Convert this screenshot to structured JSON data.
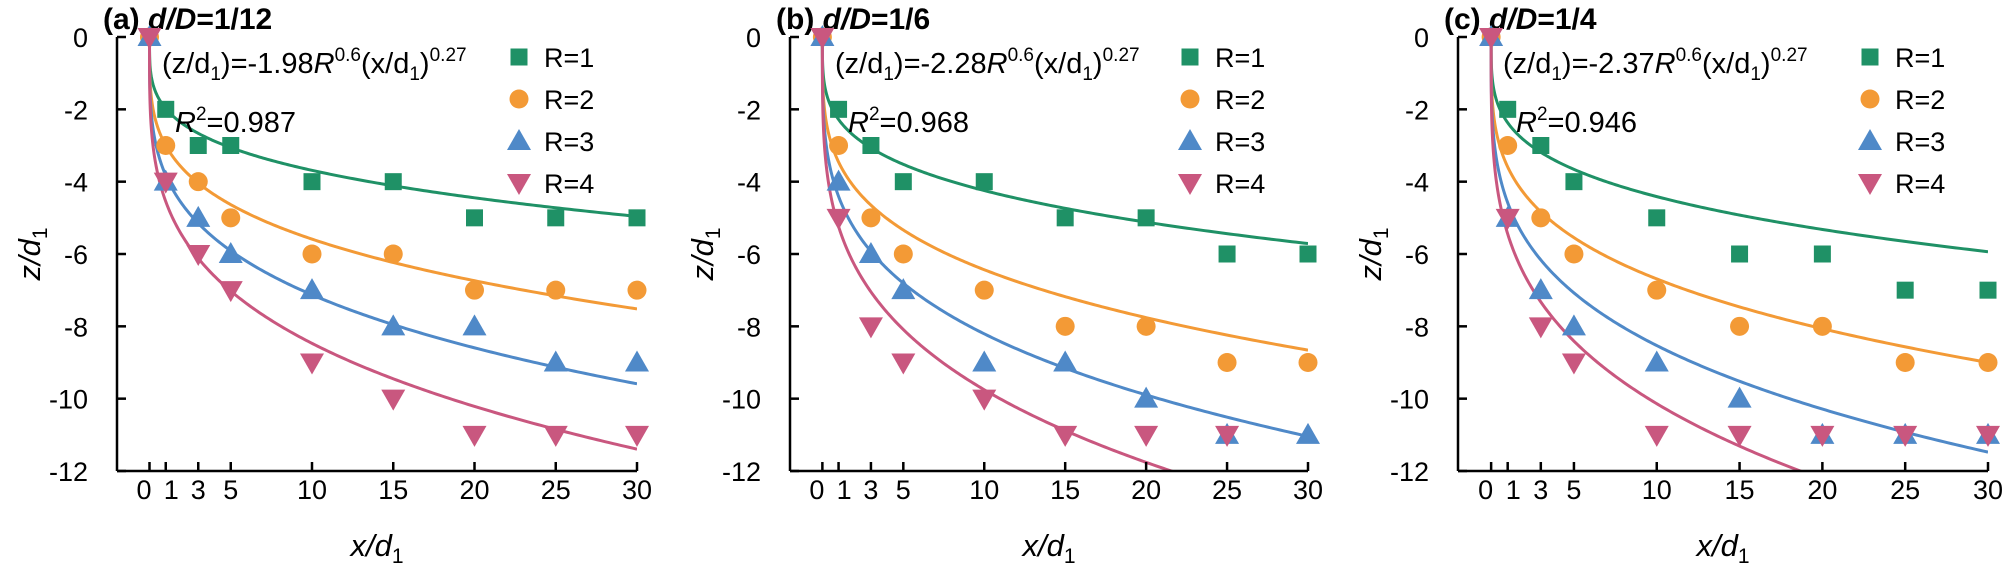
{
  "chart_data": [
    {
      "type": "scatter",
      "panel_label": "(a)",
      "title_var": "d/D",
      "title_value": "=1/12",
      "equation": "(z/d1)=-1.98R0.6(x/d1)0.27",
      "equation_parts": {
        "lhs": "(z/d",
        "lhs_sub": "1",
        "lhs_close": ")=",
        "coef": "-1.98",
        "R": "R",
        "R_exp": "0.6",
        "x": "(x/d",
        "x_sub": "1",
        "x_close": ")",
        "x_exp": "0.27"
      },
      "coef": -1.98,
      "r_exponent": 0.6,
      "x_exponent": 0.27,
      "r_squared": "R2=0.987",
      "r_squared_parts": {
        "R": "R",
        "exp": "2",
        "val": "=0.987"
      },
      "xlabel": "x/d1",
      "ylabel": "z/d1",
      "xlim": [
        -2,
        30
      ],
      "ylim": [
        -12,
        0
      ],
      "x_ticks": [
        0,
        1,
        3,
        5,
        10,
        15,
        20,
        25,
        30
      ],
      "x_tick_labels": [
        "0",
        "1",
        "3",
        "5",
        "10",
        "15",
        "20",
        "25",
        "30"
      ],
      "y_ticks": [
        0,
        -2,
        -4,
        -6,
        -8,
        -10,
        -12
      ],
      "y_tick_labels": [
        "0",
        "-2",
        "-4",
        "-6",
        "-8",
        "-10",
        "-12"
      ],
      "x": [
        0,
        1,
        3,
        5,
        10,
        15,
        20,
        25,
        30
      ],
      "series": [
        {
          "name": "R=1",
          "R": 1,
          "marker": "square",
          "color": "#1f9166",
          "values": [
            0,
            -2,
            -3,
            -3,
            -4,
            -4,
            -5,
            -5,
            -5
          ]
        },
        {
          "name": "R=2",
          "R": 2,
          "marker": "circle",
          "color": "#f39a36",
          "values": [
            0,
            -3,
            -4,
            -5,
            -6,
            -6,
            -7,
            -7,
            -7
          ]
        },
        {
          "name": "R=3",
          "R": 3,
          "marker": "triangle-up",
          "color": "#4f89c8",
          "values": [
            0,
            -4,
            -5,
            -6,
            -7,
            -8,
            -8,
            -9,
            -9
          ]
        },
        {
          "name": "R=4",
          "R": 4,
          "marker": "triangle-down",
          "color": "#c9577f",
          "values": [
            0,
            -4,
            -6,
            -7,
            -9,
            -10,
            -11,
            -11,
            -11
          ]
        }
      ]
    },
    {
      "type": "scatter",
      "panel_label": "(b)",
      "title_var": "d/D",
      "title_value": "=1/6",
      "equation": "(z/d1)=-2.28R0.6(x/d1)0.27",
      "equation_parts": {
        "lhs": "(z/d",
        "lhs_sub": "1",
        "lhs_close": ")=",
        "coef": "-2.28",
        "R": "R",
        "R_exp": "0.6",
        "x": "(x/d",
        "x_sub": "1",
        "x_close": ")",
        "x_exp": "0.27"
      },
      "coef": -2.28,
      "r_exponent": 0.6,
      "x_exponent": 0.27,
      "r_squared": "R2=0.968",
      "r_squared_parts": {
        "R": "R",
        "exp": "2",
        "val": "=0.968"
      },
      "xlabel": "x/d1",
      "ylabel": "z/d1",
      "xlim": [
        -2,
        30
      ],
      "ylim": [
        -12,
        0
      ],
      "x_ticks": [
        0,
        1,
        3,
        5,
        10,
        15,
        20,
        25,
        30
      ],
      "x_tick_labels": [
        "0",
        "1",
        "3",
        "5",
        "10",
        "15",
        "20",
        "25",
        "30"
      ],
      "y_ticks": [
        0,
        -2,
        -4,
        -6,
        -8,
        -10,
        -12
      ],
      "y_tick_labels": [
        "0",
        "-2",
        "-4",
        "-6",
        "-8",
        "-10",
        "-12"
      ],
      "x": [
        0,
        1,
        3,
        5,
        10,
        15,
        20,
        25,
        30
      ],
      "series": [
        {
          "name": "R=1",
          "R": 1,
          "marker": "square",
          "color": "#1f9166",
          "values": [
            0,
            -2,
            -3,
            -4,
            -4,
            -5,
            -5,
            -6,
            -6
          ]
        },
        {
          "name": "R=2",
          "R": 2,
          "marker": "circle",
          "color": "#f39a36",
          "values": [
            0,
            -3,
            -5,
            -6,
            -7,
            -8,
            -8,
            -9,
            -9
          ]
        },
        {
          "name": "R=3",
          "R": 3,
          "marker": "triangle-up",
          "color": "#4f89c8",
          "values": [
            0,
            -4,
            -6,
            -7,
            -9,
            -9,
            -10,
            -11,
            -11
          ]
        },
        {
          "name": "R=4",
          "R": 4,
          "marker": "triangle-down",
          "color": "#c9577f",
          "values": [
            0,
            -5,
            -8,
            -9,
            -10,
            -11,
            -11,
            -11,
            null
          ]
        }
      ]
    },
    {
      "type": "scatter",
      "panel_label": "(c)",
      "title_var": "d/D",
      "title_value": "=1/4",
      "equation": "(z/d1)=-2.37R0.6(x/d1)0.27",
      "equation_parts": {
        "lhs": "(z/d",
        "lhs_sub": "1",
        "lhs_close": ")=",
        "coef": "-2.37",
        "R": "R",
        "R_exp": "0.6",
        "x": "(x/d",
        "x_sub": "1",
        "x_close": ")",
        "x_exp": "0.27"
      },
      "coef": -2.37,
      "r_exponent": 0.6,
      "x_exponent": 0.27,
      "r_squared": "R2=0.946",
      "r_squared_parts": {
        "R": "R",
        "exp": "2",
        "val": "=0.946"
      },
      "xlabel": "x/d1",
      "ylabel": "z/d1",
      "xlim": [
        -2,
        30
      ],
      "ylim": [
        -12,
        0
      ],
      "x_ticks": [
        0,
        1,
        3,
        5,
        10,
        15,
        20,
        25,
        30
      ],
      "x_tick_labels": [
        "0",
        "1",
        "3",
        "5",
        "10",
        "15",
        "20",
        "25",
        "30"
      ],
      "y_ticks": [
        0,
        -2,
        -4,
        -6,
        -8,
        -10,
        -12
      ],
      "y_tick_labels": [
        "0",
        "-2",
        "-4",
        "-6",
        "-8",
        "-10",
        "-12"
      ],
      "x": [
        0,
        1,
        3,
        5,
        10,
        15,
        20,
        25,
        30
      ],
      "series": [
        {
          "name": "R=1",
          "R": 1,
          "marker": "square",
          "color": "#1f9166",
          "values": [
            0,
            -2,
            -3,
            -4,
            -5,
            -6,
            -6,
            -7,
            -7
          ]
        },
        {
          "name": "R=2",
          "R": 2,
          "marker": "circle",
          "color": "#f39a36",
          "values": [
            0,
            -3,
            -5,
            -6,
            -7,
            -8,
            -8,
            -9,
            -9
          ]
        },
        {
          "name": "R=3",
          "R": 3,
          "marker": "triangle-up",
          "color": "#4f89c8",
          "values": [
            0,
            -5,
            -7,
            -8,
            -9,
            -10,
            -11,
            -11,
            -11
          ]
        },
        {
          "name": "R=4",
          "R": 4,
          "marker": "triangle-down",
          "color": "#c9577f",
          "values": [
            0,
            -5,
            -8,
            -9,
            -11,
            -11,
            -11,
            -11,
            -11
          ]
        }
      ]
    }
  ]
}
